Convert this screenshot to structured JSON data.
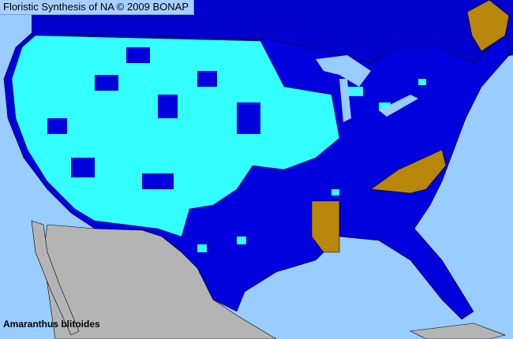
{
  "header": {
    "title": "Floristic Synthesis of NA © 2009 BONAP"
  },
  "map": {
    "species": "Amaranthus blitoides",
    "colors": {
      "ocean": "#99ccff",
      "canada": "#0000cc",
      "present_county": "#00ffff",
      "present_state": "#0000dd",
      "noxious_or_rare_state": "#b8860b",
      "outside": "#b4b4b4"
    }
  }
}
